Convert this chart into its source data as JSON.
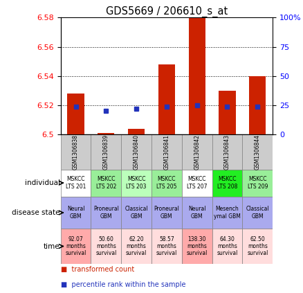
{
  "title": "GDS5669 / 206610_s_at",
  "samples": [
    "GSM1306838",
    "GSM1306839",
    "GSM1306840",
    "GSM1306841",
    "GSM1306842",
    "GSM1306843",
    "GSM1306844"
  ],
  "transformed_count": [
    6.528,
    6.501,
    6.504,
    6.548,
    6.582,
    6.53,
    6.54
  ],
  "percentile_rank": [
    24,
    20,
    22,
    24,
    25,
    24,
    24
  ],
  "bar_base": 6.5,
  "ylim": [
    6.5,
    6.58
  ],
  "yticks_left": [
    6.5,
    6.52,
    6.54,
    6.56,
    6.58
  ],
  "yticks_right": [
    0,
    25,
    50,
    75,
    100
  ],
  "right_ylim": [
    0,
    100
  ],
  "bar_color": "#cc2200",
  "dot_color": "#2233bb",
  "gsm_bg_color": "#cccccc",
  "individual_colors": [
    "#ffffff",
    "#99ee99",
    "#bbffbb",
    "#99ee99",
    "#ffffff",
    "#22ee22",
    "#99ee99"
  ],
  "individual_labels": [
    "MSKCC\nLTS 201",
    "MSKCC\nLTS 202",
    "MSKCC\nLTS 203",
    "MSKCC\nLTS 205",
    "MSKCC\nLTS 207",
    "MSKCC\nLTS 208",
    "MSKCC\nLTS 209"
  ],
  "disease_colors": [
    "#aaaaee",
    "#aaaaee",
    "#aaaaee",
    "#aaaaee",
    "#aaaaee",
    "#aaaaee",
    "#aaaaee"
  ],
  "disease_labels": [
    "Neural\nGBM",
    "Proneural\nGBM",
    "Classical\nGBM",
    "Proneural\nGBM",
    "Neural\nGBM",
    "Mesench\nymal GBM",
    "Classical\nGBM"
  ],
  "time_colors": [
    "#ffaaaa",
    "#ffdddd",
    "#ffdddd",
    "#ffdddd",
    "#ffaaaa",
    "#ffdddd",
    "#ffdddd"
  ],
  "time_labels": [
    "92.07\nmonths\nsurvival",
    "50.60\nmonths\nsurvival",
    "62.20\nmonths\nsurvival",
    "58.57\nmonths\nsurvival",
    "138.30\nmonths\nsurvival",
    "64.30\nmonths\nsurvival",
    "62.50\nmonths\nsurvival"
  ],
  "row_labels": [
    "individual",
    "disease state",
    "time"
  ],
  "legend_items": [
    "transformed count",
    "percentile rank within the sample"
  ],
  "legend_colors": [
    "#cc2200",
    "#2233bb"
  ]
}
